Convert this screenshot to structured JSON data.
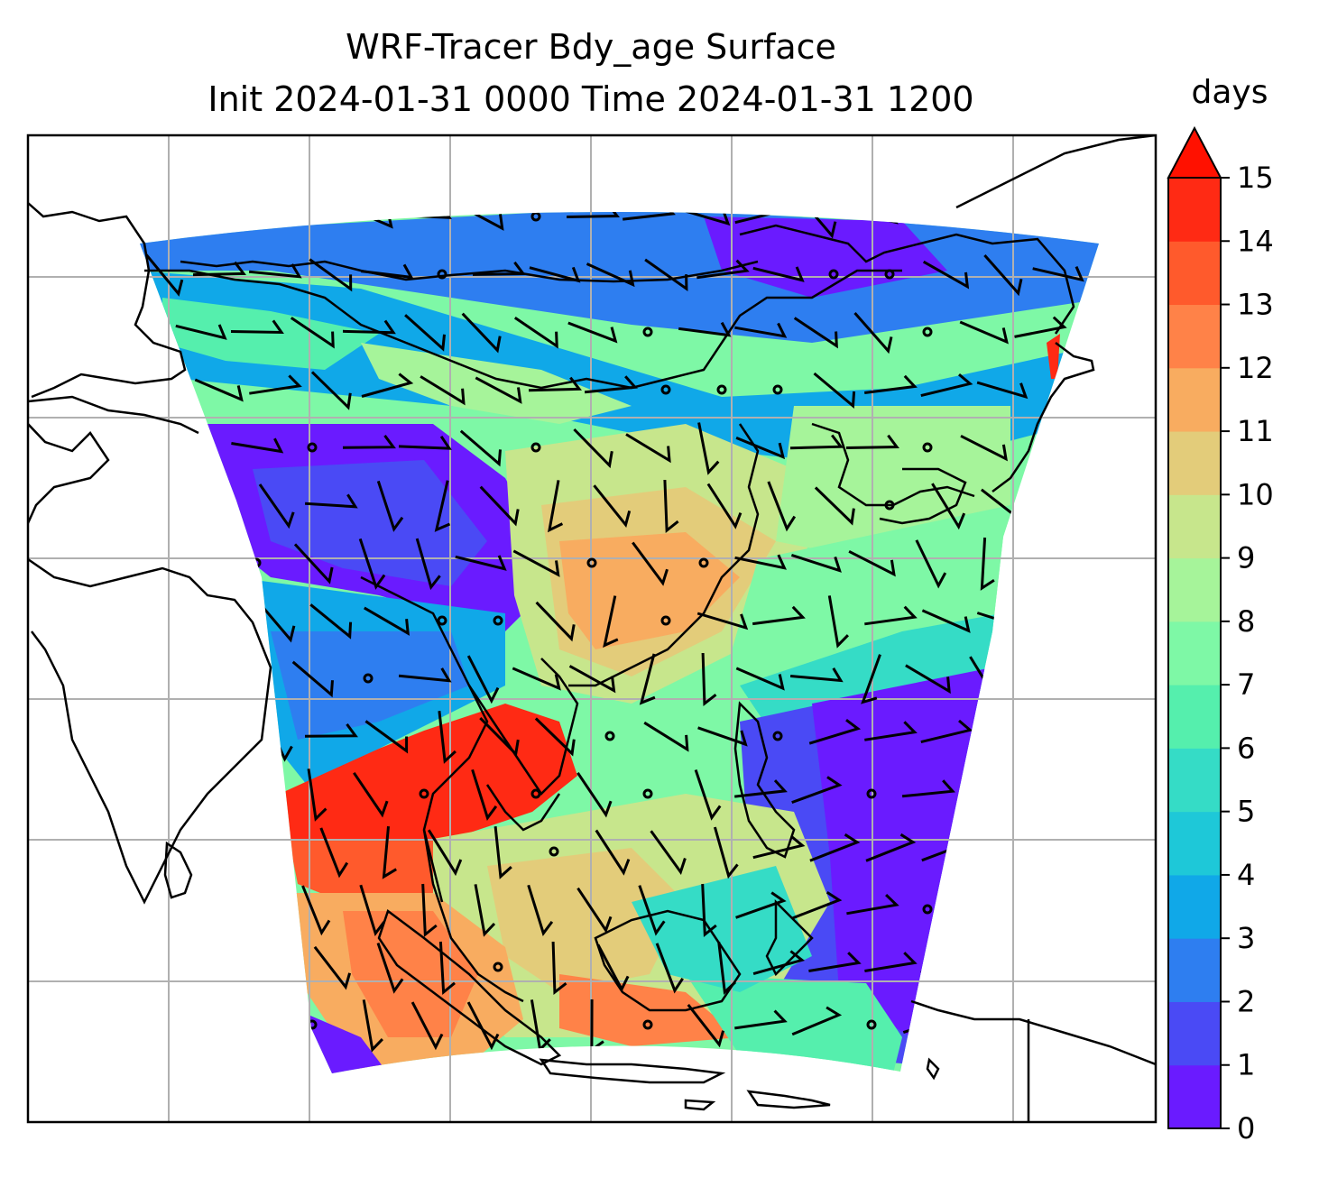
{
  "title": {
    "line1": "WRF-Tracer Bdy_age Surface",
    "line2": "Init 2024-01-31 0000 Time 2024-01-31 1200"
  },
  "colorbar": {
    "label": "days",
    "ticks": [
      "0",
      "1",
      "2",
      "3",
      "4",
      "5",
      "6",
      "7",
      "8",
      "9",
      "10",
      "11",
      "12",
      "13",
      "14",
      "15"
    ],
    "extend": "max",
    "colors": [
      "#6a1bff",
      "#4a4af5",
      "#2e7ef0",
      "#10a8e8",
      "#1ec8d8",
      "#35dcc6",
      "#55efad",
      "#7ef8a6",
      "#a6f49a",
      "#c7e68c",
      "#e3cc7a",
      "#f8ac60",
      "#ff8248",
      "#ff5a2c",
      "#ff2a14"
    ],
    "extend_color": "#ff1100"
  },
  "map": {
    "gridlines": true,
    "field": "boundary age",
    "overlay": "surface wind barbs"
  }
}
